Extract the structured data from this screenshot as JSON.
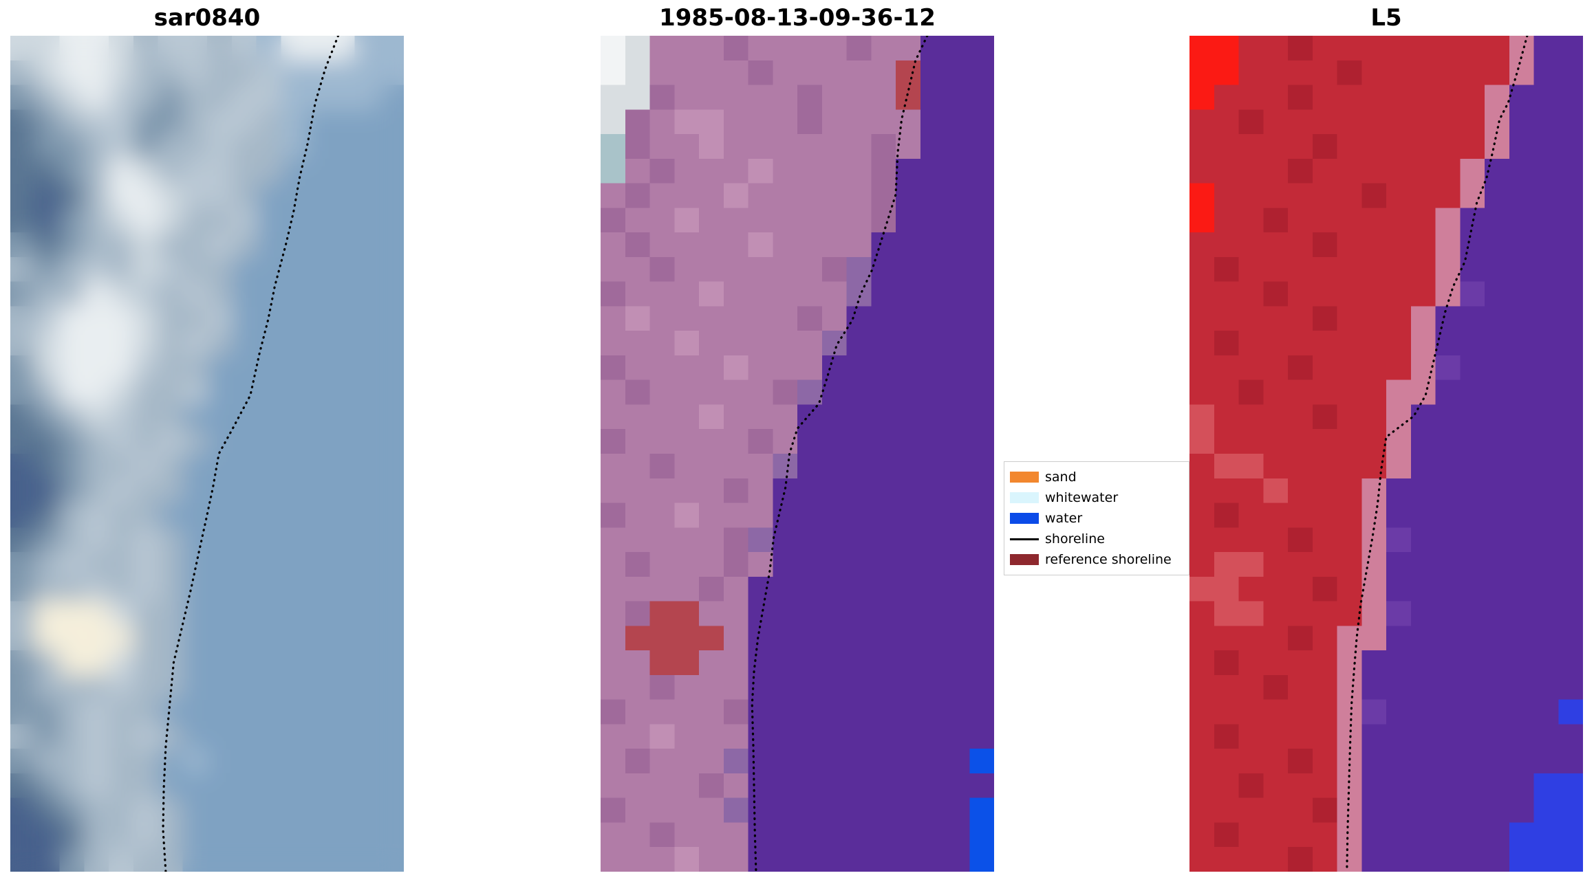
{
  "figure": {
    "background": "#ffffff"
  },
  "panels": [
    {
      "title": "sar0840",
      "smoothing": true,
      "shoreline_color": "#000000",
      "palette": {
        "a": "#7fa2c2",
        "A": "#9db8d0",
        "b": "#b9c8d4",
        "s": "#a6b8c7",
        "l": "#cfd9e0",
        "L": "#e9eef1",
        "m": "#7e97ad",
        "d": "#5a7693",
        "D": "#47618c",
        "c": "#f5efdb"
      },
      "grid": [
        "llLLlsbbsbALLLAA",
        "slLLlssbssbAAAAA",
        "mslLbsmssbbAAAAa",
        "dmsbbmmsbbsAaaaa",
        "dmmsbmssbssAaaaa",
        "ddmsLlsbbssaaaaa",
        "dDdsLLlbbsaaaaaa",
        "dDmslLlssbaaaaaa",
        "mdmsslssbsaaaaaa",
        "smsbslbssaaaaaaa",
        "mssLlbsbsaaaaaaa",
        "sbLLLlssbaaaaaaa",
        "slLLLlsbsaaaaaaa",
        "mlLLLbssaaaaaaaa",
        "msLLlssbaaaaaaaa",
        "dmslbssaaaaaaaaa",
        "ddmsbsbsaaaaaaaa",
        "Ddmssbsaaaaaaaaa",
        "DDmsbssaaaaaaaaa",
        "Ddsbssaaaaaaaaaa",
        "dmsbsbsaaaaaaaaa",
        "msbssbsaaaaaaaaa",
        "mssbsbsaaaaaaaaa",
        "sccclssaaaaaaaaa",
        "sccccssaaaaaaaaa",
        "mscclssaaaaaaaaa",
        "msssbssaaaaaaaaa",
        "mmsbssaaaaaaaaaa",
        "smsbsbsaaaaaaaaa",
        "mssbssaAaaaaaaaa",
        "dmsbssaaaaaaaaaa",
        "Ddmssbsaaaaaaaaa",
        "DDdssbsaaaaaaaaa",
        "DDmsbssaaaaaaaaa"
      ],
      "shoreline": [
        [
          0.833,
          0.0
        ],
        [
          0.8,
          0.04
        ],
        [
          0.775,
          0.08
        ],
        [
          0.755,
          0.13
        ],
        [
          0.735,
          0.17
        ],
        [
          0.72,
          0.21
        ],
        [
          0.7,
          0.25
        ],
        [
          0.672,
          0.3
        ],
        [
          0.655,
          0.34
        ],
        [
          0.633,
          0.38
        ],
        [
          0.61,
          0.43
        ],
        [
          0.565,
          0.47
        ],
        [
          0.53,
          0.5
        ],
        [
          0.515,
          0.54
        ],
        [
          0.497,
          0.58
        ],
        [
          0.478,
          0.62
        ],
        [
          0.46,
          0.66
        ],
        [
          0.435,
          0.71
        ],
        [
          0.415,
          0.75
        ],
        [
          0.405,
          0.8
        ],
        [
          0.395,
          0.85
        ],
        [
          0.39,
          0.9
        ],
        [
          0.388,
          0.95
        ],
        [
          0.395,
          1.0
        ]
      ]
    },
    {
      "title": "1985-08-13-09-36-12",
      "smoothing": false,
      "shoreline_color": "#000000",
      "palette": {
        "p": "#b17ca7",
        "P": "#c18fb4",
        "q": "#a06a9b",
        "u": "#8d68a6",
        "v": "#5a2d9a",
        "V": "#6a3aa4",
        "r": "#b4454f",
        "g": "#d9dee1",
        "G": "#f2f4f5",
        "t": "#a9c3c9",
        "B": "#0b51e8"
      },
      "grid": [
        "Ggpppqppppqppvvv",
        "Ggppppqppppprvvv",
        "ggqpppppqppprvvv",
        "gqpPPpppqppppvvv",
        "tqppPppppppqpvvv",
        "tpqpppPppppqvvvv",
        "pqpppPpppppqvvvv",
        "qppPpppppppqvvvv",
        "pqppppPppppvvvvv",
        "ppqppppppquvvvvv",
        "qpppPpppppuvvvvv",
        "pPppppppqpvvvvvv",
        "pppPpppppuvvvvvv",
        "qppppPpppvvvvvvv",
        "pqpppppquvvvvvvv",
        "ppppPpppvvvvvvvv",
        "qpppppqpvvvvvvvv",
        "ppqppppuvvvvvvvv",
        "pppppqpvvvvvvvvv",
        "qppPpppvvvvvvvvv",
        "pppppquvvvvvvvvv",
        "pqpppqpvvvvvvvvv",
        "ppppqpvvvvvvvvvv",
        "pqrrppvvvvvvvvvv",
        "prrrrpvvvvvvvvvv",
        "pprrppvvvvvvvvvv",
        "ppqpppvvvvvvvvvv",
        "qppppqvvvvvvvvvv",
        "ppPpppvvvvvvvvvv",
        "pqpppuvvvvvvvvvB",
        "ppppqpvvvvvvvvvv",
        "qppppuvvvvvvvvvB",
        "ppqpppvvvvvvvvvB",
        "pppPppvvvvvvvvvB"
      ],
      "shoreline": [
        [
          0.83,
          0.0
        ],
        [
          0.8,
          0.03
        ],
        [
          0.78,
          0.07
        ],
        [
          0.765,
          0.1
        ],
        [
          0.755,
          0.14
        ],
        [
          0.75,
          0.19
        ],
        [
          0.73,
          0.22
        ],
        [
          0.71,
          0.25
        ],
        [
          0.69,
          0.28
        ],
        [
          0.66,
          0.31
        ],
        [
          0.64,
          0.34
        ],
        [
          0.6,
          0.37
        ],
        [
          0.575,
          0.41
        ],
        [
          0.555,
          0.44
        ],
        [
          0.5,
          0.47
        ],
        [
          0.48,
          0.5
        ],
        [
          0.47,
          0.54
        ],
        [
          0.455,
          0.57
        ],
        [
          0.44,
          0.6
        ],
        [
          0.43,
          0.64
        ],
        [
          0.415,
          0.68
        ],
        [
          0.4,
          0.72
        ],
        [
          0.39,
          0.76
        ],
        [
          0.385,
          0.8
        ],
        [
          0.388,
          0.85
        ],
        [
          0.39,
          0.9
        ],
        [
          0.392,
          0.95
        ],
        [
          0.395,
          1.0
        ]
      ]
    },
    {
      "title": "L5",
      "smoothing": false,
      "shoreline_color": "#000000",
      "palette": {
        "e": "#c32a38",
        "E": "#af2130",
        "f": "#d4505a",
        "F": "#fb1a14",
        "n": "#cf7f9b",
        "v": "#5b2c9d",
        "V": "#6b3ba7",
        "B": "#2f3fe3"
      },
      "grid": [
        "FFeeEeeeeeeeenvv",
        "FFeeeeEeeeeeenvv",
        "FeeeEeeeeeeenvvv",
        "eeEeeeeeeeeenvvv",
        "eeeeeEeeeeeenvvv",
        "eeeeEeeeeeenvvvv",
        "FeeeeeeEeeenvvvv",
        "FeeEeeeeeenvvvvv",
        "eeeeeEeeeenvvvvv",
        "eEeeeeeeeenvvvvv",
        "eeeEeeeeeenVvvvv",
        "eeeeeEeeenvvvvvv",
        "eEeeeeeeenvvvvvv",
        "eeeeEeeeenVvvvvv",
        "eeEeeeeennvvvvvv",
        "feeeeEeenvvvvvvv",
        "feeeeeeenvvvvvvv",
        "effeeeeenvvvvvvv",
        "eeefeeenvvvvvvvv",
        "eEeeeeenvvvvvvvv",
        "eeeeEeenVvvvvvvv",
        "effeeeenvvvvvvvv",
        "ffeeeEenvvvvvvvv",
        "effeeeenVvvvvvvv",
        "eeeeEennvvvvvvvv",
        "eEeeeenvvvvvvvvv",
        "eeeEeenvvvvvvvvv",
        "eeeeeenVvvvvvvvB",
        "eEeeeenvvvvvvvvv",
        "eeeeEenvvvvvvvvv",
        "eeEeeenvvvvvvvBB",
        "eeeeeEnvvvvvvvBB",
        "eEeeeenvvvvvvBBB",
        "eeeeEenvvvvvvBBB"
      ],
      "shoreline": [
        [
          0.858,
          0.0
        ],
        [
          0.835,
          0.04
        ],
        [
          0.81,
          0.08
        ],
        [
          0.788,
          0.1
        ],
        [
          0.77,
          0.14
        ],
        [
          0.755,
          0.17
        ],
        [
          0.73,
          0.2
        ],
        [
          0.715,
          0.235
        ],
        [
          0.7,
          0.27
        ],
        [
          0.67,
          0.3
        ],
        [
          0.65,
          0.33
        ],
        [
          0.635,
          0.36
        ],
        [
          0.615,
          0.4
        ],
        [
          0.6,
          0.43
        ],
        [
          0.57,
          0.455
        ],
        [
          0.5,
          0.48
        ],
        [
          0.487,
          0.52
        ],
        [
          0.478,
          0.56
        ],
        [
          0.465,
          0.6
        ],
        [
          0.45,
          0.64
        ],
        [
          0.435,
          0.68
        ],
        [
          0.425,
          0.72
        ],
        [
          0.418,
          0.76
        ],
        [
          0.412,
          0.8
        ],
        [
          0.408,
          0.85
        ],
        [
          0.405,
          0.9
        ],
        [
          0.402,
          0.95
        ],
        [
          0.4,
          1.0
        ]
      ]
    }
  ],
  "legend": {
    "items": [
      {
        "label": "sand",
        "kind": "patch",
        "color": "#f2872e"
      },
      {
        "label": "whitewater",
        "kind": "patch",
        "color": "#daf5fd"
      },
      {
        "label": "water",
        "kind": "patch",
        "color": "#0b4be8"
      },
      {
        "label": "shoreline",
        "kind": "line",
        "color": "#000000"
      },
      {
        "label": "reference shoreline",
        "kind": "patch",
        "color": "#8e282e"
      }
    ]
  },
  "chart_data": {
    "type": "image",
    "n_panels": 3,
    "panel_titles": [
      "sar0840",
      "1985-08-13-09-36-12",
      "L5"
    ],
    "panel_descriptions": [
      "Blue-grey SAR backscatter image; dotted black detected-shoreline curve runs from upper right to lower left",
      "Classified optical scene: mauve land on left, deep purple water on right, dark-red patch mid-lower land, small red patch near top of boundary, white/grey pixels top-left corner, bright blue pixels bottom-right edge; dotted shoreline follows land-water boundary",
      "Landsat 5 false-colour scene: red land on left, purple water on right, bright red patch top-left corner, pink transition band along boundary, blue pixels bottom-right corner; dotted shoreline follows boundary"
    ],
    "legend_entries": [
      "sand",
      "whitewater",
      "water",
      "shoreline",
      "reference shoreline"
    ],
    "legend_position": "between second and third panels, vertically centered"
  }
}
